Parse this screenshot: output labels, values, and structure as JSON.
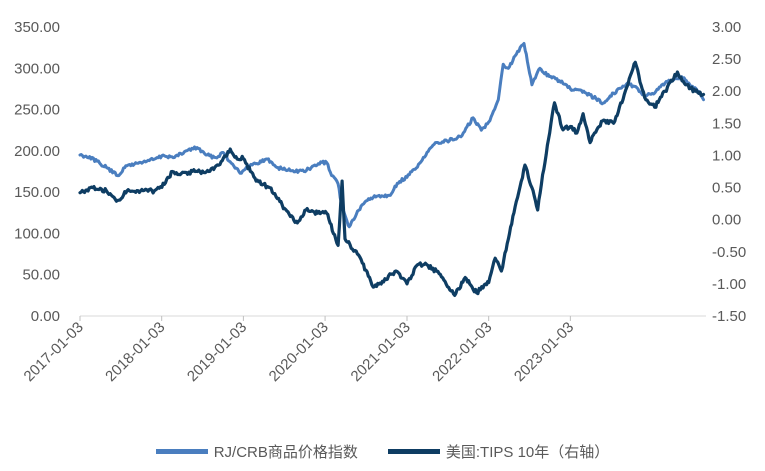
{
  "chart_data": {
    "type": "line",
    "x_ticks": [
      "2017-01-03",
      "2018-01-03",
      "2019-01-03",
      "2020-01-03",
      "2021-01-03",
      "2022-01-03",
      "2023-01-03"
    ],
    "y_left": {
      "ticks": [
        "0.00",
        "50.00",
        "100.00",
        "150.00",
        "200.00",
        "250.00",
        "300.00",
        "350.00"
      ],
      "ylim": [
        0,
        350
      ]
    },
    "y_right": {
      "ticks": [
        "-1.50",
        "-1.00",
        "-0.50",
        "0.00",
        "0.50",
        "1.00",
        "1.50",
        "2.00",
        "2.50",
        "3.00"
      ],
      "ylim": [
        -1.5,
        3.0
      ]
    },
    "grid": false,
    "legend_position": "bottom",
    "series": [
      {
        "name": "RJ/CRB商品价格指数",
        "axis": "left",
        "color": "#4a7ebf",
        "points": [
          [
            "2017-01-03",
            195
          ],
          [
            "2017-02-15",
            193
          ],
          [
            "2017-04-01",
            185
          ],
          [
            "2017-05-01",
            180
          ],
          [
            "2017-06-20",
            170
          ],
          [
            "2017-08-01",
            182
          ],
          [
            "2017-10-01",
            186
          ],
          [
            "2017-12-01",
            190
          ],
          [
            "2018-01-15",
            194
          ],
          [
            "2018-03-01",
            192
          ],
          [
            "2018-05-01",
            201
          ],
          [
            "2018-06-10",
            204
          ],
          [
            "2018-07-20",
            195
          ],
          [
            "2018-09-01",
            192
          ],
          [
            "2018-10-05",
            198
          ],
          [
            "2018-11-10",
            185
          ],
          [
            "2018-12-25",
            173
          ],
          [
            "2019-02-01",
            182
          ],
          [
            "2019-04-20",
            190
          ],
          [
            "2019-06-01",
            180
          ],
          [
            "2019-08-01",
            176
          ],
          [
            "2019-10-01",
            175
          ],
          [
            "2019-12-20",
            186
          ],
          [
            "2020-01-10",
            186
          ],
          [
            "2020-02-01",
            170
          ],
          [
            "2020-03-01",
            160
          ],
          [
            "2020-03-20",
            130
          ],
          [
            "2020-04-20",
            108
          ],
          [
            "2020-06-01",
            128
          ],
          [
            "2020-07-15",
            142
          ],
          [
            "2020-09-01",
            146
          ],
          [
            "2020-10-15",
            146
          ],
          [
            "2020-12-01",
            163
          ],
          [
            "2021-01-03",
            168
          ],
          [
            "2021-03-01",
            185
          ],
          [
            "2021-05-10",
            210
          ],
          [
            "2021-07-01",
            212
          ],
          [
            "2021-09-01",
            217
          ],
          [
            "2021-10-25",
            240
          ],
          [
            "2021-12-01",
            225
          ],
          [
            "2022-01-03",
            235
          ],
          [
            "2022-02-15",
            262
          ],
          [
            "2022-03-09",
            305
          ],
          [
            "2022-04-01",
            300
          ],
          [
            "2022-05-01",
            315
          ],
          [
            "2022-06-10",
            330
          ],
          [
            "2022-07-15",
            280
          ],
          [
            "2022-08-20",
            300
          ],
          [
            "2022-10-01",
            290
          ],
          [
            "2022-11-15",
            285
          ],
          [
            "2023-01-03",
            275
          ],
          [
            "2023-03-15",
            270
          ],
          [
            "2023-05-30",
            258
          ],
          [
            "2023-07-15",
            270
          ],
          [
            "2023-09-15",
            282
          ],
          [
            "2023-11-01",
            275
          ],
          [
            "2023-12-01",
            266
          ],
          [
            "2024-01-15",
            270
          ],
          [
            "2024-03-01",
            282
          ],
          [
            "2024-04-15",
            288
          ],
          [
            "2024-05-20",
            288
          ],
          [
            "2024-06-20",
            280
          ],
          [
            "2024-07-30",
            272
          ],
          [
            "2024-08-20",
            262
          ]
        ]
      },
      {
        "name": "美国:TIPS 10年（右轴）",
        "axis": "right",
        "color": "#0e3d63",
        "points": [
          [
            "2017-01-03",
            0.42
          ],
          [
            "2017-03-01",
            0.5
          ],
          [
            "2017-05-01",
            0.45
          ],
          [
            "2017-06-20",
            0.3
          ],
          [
            "2017-08-01",
            0.45
          ],
          [
            "2017-10-01",
            0.45
          ],
          [
            "2017-12-01",
            0.45
          ],
          [
            "2018-01-15",
            0.55
          ],
          [
            "2018-02-20",
            0.75
          ],
          [
            "2018-04-01",
            0.72
          ],
          [
            "2018-06-01",
            0.75
          ],
          [
            "2018-08-01",
            0.75
          ],
          [
            "2018-10-01",
            0.92
          ],
          [
            "2018-11-05",
            1.1
          ],
          [
            "2018-12-01",
            0.98
          ],
          [
            "2019-01-03",
            0.95
          ],
          [
            "2019-03-01",
            0.6
          ],
          [
            "2019-05-01",
            0.5
          ],
          [
            "2019-06-15",
            0.28
          ],
          [
            "2019-08-01",
            0.05
          ],
          [
            "2019-09-01",
            -0.05
          ],
          [
            "2019-10-10",
            0.15
          ],
          [
            "2019-12-01",
            0.1
          ],
          [
            "2020-01-10",
            0.1
          ],
          [
            "2020-03-01",
            -0.4
          ],
          [
            "2020-03-19",
            0.6
          ],
          [
            "2020-04-01",
            -0.3
          ],
          [
            "2020-06-01",
            -0.55
          ],
          [
            "2020-08-05",
            -1.05
          ],
          [
            "2020-09-15",
            -0.96
          ],
          [
            "2020-11-15",
            -0.8
          ],
          [
            "2021-01-03",
            -1.0
          ],
          [
            "2021-02-20",
            -0.7
          ],
          [
            "2021-04-01",
            -0.7
          ],
          [
            "2021-06-01",
            -0.85
          ],
          [
            "2021-08-04",
            -1.18
          ],
          [
            "2021-09-20",
            -0.9
          ],
          [
            "2021-11-10",
            -1.14
          ],
          [
            "2021-12-20",
            -1.0
          ],
          [
            "2022-01-03",
            -0.98
          ],
          [
            "2022-02-01",
            -0.6
          ],
          [
            "2022-03-01",
            -0.8
          ],
          [
            "2022-04-01",
            -0.3
          ],
          [
            "2022-05-01",
            0.2
          ],
          [
            "2022-06-14",
            0.85
          ],
          [
            "2022-07-15",
            0.5
          ],
          [
            "2022-08-10",
            0.15
          ],
          [
            "2022-09-01",
            0.7
          ],
          [
            "2022-10-24",
            1.82
          ],
          [
            "2022-12-01",
            1.4
          ],
          [
            "2023-01-03",
            1.45
          ],
          [
            "2023-02-01",
            1.35
          ],
          [
            "2023-03-01",
            1.65
          ],
          [
            "2023-04-01",
            1.2
          ],
          [
            "2023-05-01",
            1.4
          ],
          [
            "2023-06-01",
            1.55
          ],
          [
            "2023-07-15",
            1.5
          ],
          [
            "2023-09-01",
            1.95
          ],
          [
            "2023-10-20",
            2.45
          ],
          [
            "2023-12-01",
            1.9
          ],
          [
            "2024-01-15",
            1.75
          ],
          [
            "2024-03-01",
            2.0
          ],
          [
            "2024-04-25",
            2.3
          ],
          [
            "2024-06-01",
            2.1
          ],
          [
            "2024-07-15",
            2.0
          ],
          [
            "2024-08-20",
            1.95
          ]
        ]
      }
    ]
  }
}
